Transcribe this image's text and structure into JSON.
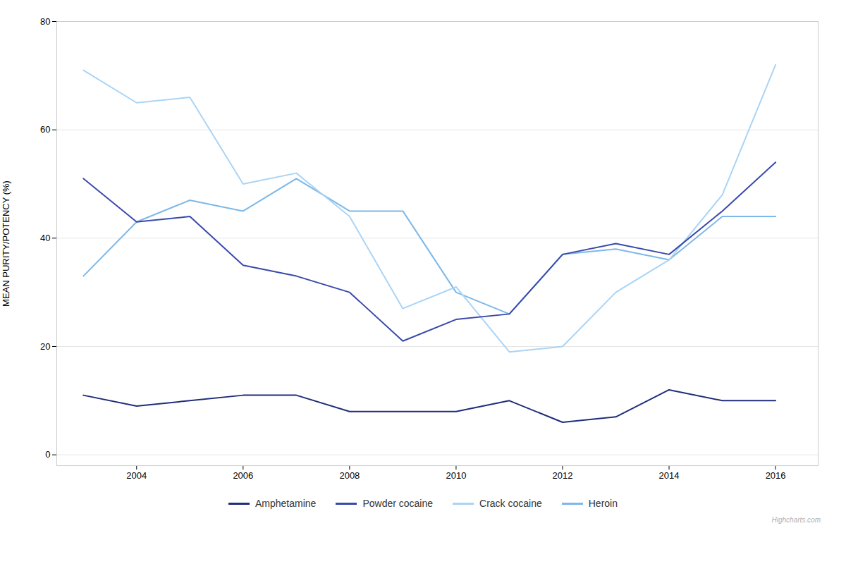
{
  "chart_data": {
    "type": "line",
    "x": [
      2003,
      2004,
      2005,
      2006,
      2007,
      2008,
      2009,
      2010,
      2011,
      2012,
      2013,
      2014,
      2015,
      2016
    ],
    "series": [
      {
        "name": "Amphetamine",
        "color": "#1f2d7b",
        "values": [
          11,
          9,
          10,
          11,
          11,
          8,
          8,
          8,
          10,
          6,
          7,
          12,
          10,
          10
        ]
      },
      {
        "name": "Powder cocaine",
        "color": "#3949ab",
        "values": [
          51,
          43,
          44,
          35,
          33,
          30,
          21,
          25,
          26,
          37,
          39,
          37,
          45,
          54
        ]
      },
      {
        "name": "Crack cocaine",
        "color": "#aad4f5",
        "values": [
          71,
          65,
          66,
          50,
          52,
          44,
          27,
          31,
          19,
          20,
          30,
          36,
          48,
          72
        ]
      },
      {
        "name": "Heroin",
        "color": "#7cb8e8",
        "values": [
          33,
          43,
          47,
          45,
          51,
          45,
          45,
          30,
          26,
          37,
          38,
          36,
          44,
          44
        ]
      }
    ],
    "ylabel": "MEAN PURITY/POTENCY (%)",
    "xlim": [
      2002.5,
      2016.8
    ],
    "xticks": [
      2004,
      2006,
      2008,
      2010,
      2012,
      2014,
      2016
    ],
    "ylim": [
      -2,
      80
    ],
    "yticks": [
      0,
      20,
      40,
      60,
      80
    ],
    "grid": "y",
    "legend": "bottom",
    "annotations": [
      "Highcharts.com"
    ]
  }
}
